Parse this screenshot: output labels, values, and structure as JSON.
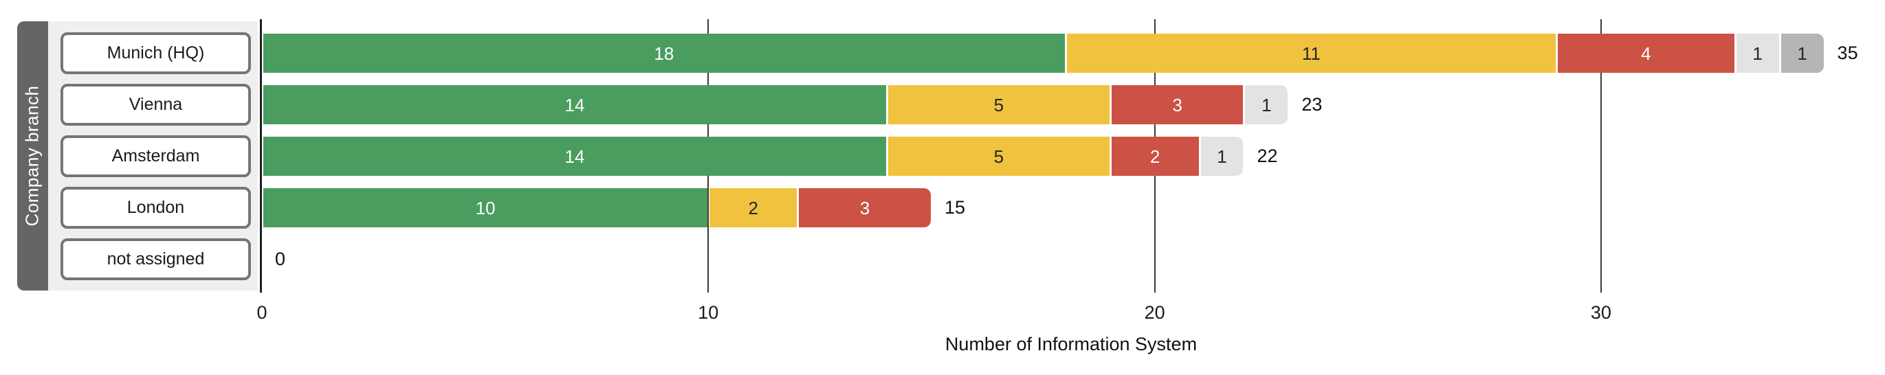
{
  "chart_data": {
    "type": "bar",
    "orientation": "horizontal",
    "stacked": true,
    "xlabel": "Number of Information System",
    "ylabel": "Company branch",
    "categories": [
      "Munich (HQ)",
      "Vienna",
      "Amsterdam",
      "London",
      "not assigned"
    ],
    "series": [
      {
        "name": "green",
        "color": "#4A9D5F",
        "label_color": "#ffffff",
        "values": [
          18,
          14,
          14,
          10,
          0
        ]
      },
      {
        "name": "amber",
        "color": "#F0C23E",
        "label_color": "#262626",
        "values": [
          11,
          5,
          5,
          2,
          0
        ]
      },
      {
        "name": "red",
        "color": "#CB5244",
        "label_color": "#ffffff",
        "values": [
          4,
          3,
          2,
          3,
          0
        ]
      },
      {
        "name": "light-gray",
        "color": "#E3E3E3",
        "label_color": "#262626",
        "values": [
          1,
          1,
          1,
          0,
          0
        ]
      },
      {
        "name": "gray",
        "color": "#B5B5B5",
        "label_color": "#262626",
        "values": [
          1,
          0,
          0,
          0,
          0
        ]
      }
    ],
    "totals": [
      "35",
      "23",
      "22",
      "15",
      "0"
    ],
    "x_ticks": [
      "0",
      "10",
      "20",
      "30"
    ],
    "x_tick_values": [
      0,
      10,
      20,
      30
    ],
    "xlim": [
      0,
      36.3
    ],
    "grid": true,
    "legend": false
  },
  "colors": {
    "axis_band": "#656565",
    "label_panel": "#EFEFEF",
    "button_border": "#757575",
    "axis_line": "#1F1F1F",
    "gridline": "#3A3A3A",
    "background": "#FFFFFF"
  }
}
